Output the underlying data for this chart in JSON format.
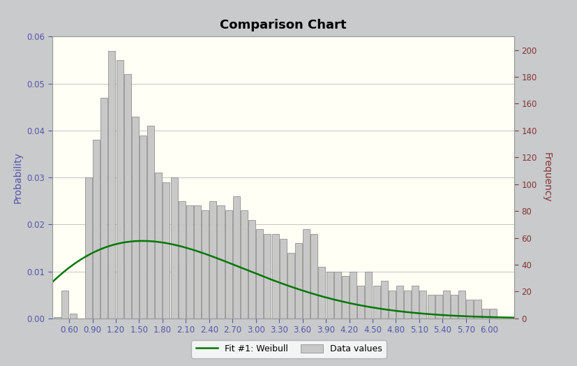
{
  "title": "Comparison Chart",
  "ylabel_left": "Probability",
  "ylabel_right": "Frequency",
  "plot_bg": "#FFFFF5",
  "fig_bg": "#C8CACC",
  "bar_color": "#C8C8C8",
  "bar_edge_color": "#808080",
  "weibull_color": "#007700",
  "left_label_color": "#5555AA",
  "left_tick_color": "#5555AA",
  "right_label_color": "#883333",
  "right_tick_color": "#883333",
  "title_color": "#000000",
  "xtick_color": "#5555AA",
  "grid_color": "#BBBBBB",
  "ylim_left": [
    0.0,
    0.06
  ],
  "ylim_right": [
    0,
    210
  ],
  "xlim": [
    0.38,
    6.32
  ],
  "x_ticks": [
    0.6,
    0.9,
    1.2,
    1.5,
    1.8,
    2.1,
    2.4,
    2.7,
    3.0,
    3.3,
    3.6,
    3.9,
    4.2,
    4.5,
    4.8,
    5.1,
    5.4,
    5.7,
    6.0
  ],
  "left_yticks": [
    0.0,
    0.01,
    0.02,
    0.03,
    0.04,
    0.05,
    0.06
  ],
  "right_yticks": [
    0,
    20,
    40,
    60,
    80,
    100,
    120,
    140,
    160,
    180,
    200
  ],
  "bar_width": 0.09,
  "bar_centers": [
    0.45,
    0.55,
    0.65,
    0.75,
    0.85,
    0.95,
    1.05,
    1.15,
    1.25,
    1.35,
    1.45,
    1.55,
    1.65,
    1.75,
    1.85,
    1.95,
    2.05,
    2.15,
    2.25,
    2.35,
    2.45,
    2.55,
    2.65,
    2.75,
    2.85,
    2.95,
    3.05,
    3.15,
    3.25,
    3.35,
    3.45,
    3.55,
    3.65,
    3.75,
    3.85,
    3.95,
    4.05,
    4.15,
    4.25,
    4.35,
    4.45,
    4.55,
    4.65,
    4.75,
    4.85,
    4.95,
    5.05,
    5.15,
    5.25,
    5.35,
    5.45,
    5.55,
    5.65,
    5.75,
    5.85,
    5.95,
    6.05
  ],
  "bar_probs": [
    0.0003,
    0.006,
    0.001,
    0.0,
    0.03,
    0.038,
    0.047,
    0.057,
    0.055,
    0.052,
    0.043,
    0.039,
    0.041,
    0.031,
    0.029,
    0.03,
    0.025,
    0.024,
    0.024,
    0.023,
    0.025,
    0.024,
    0.023,
    0.026,
    0.023,
    0.021,
    0.019,
    0.018,
    0.018,
    0.017,
    0.014,
    0.016,
    0.019,
    0.018,
    0.011,
    0.01,
    0.01,
    0.009,
    0.01,
    0.007,
    0.01,
    0.007,
    0.008,
    0.006,
    0.007,
    0.006,
    0.007,
    0.006,
    0.005,
    0.005,
    0.006,
    0.005,
    0.006,
    0.004,
    0.004,
    0.002,
    0.002
  ],
  "weibull_k": 1.85,
  "weibull_lambda": 2.35,
  "weibull_peak_prob": 0.0165,
  "legend_line_label": "Fit #1: Weibull",
  "legend_bar_label": "Data values",
  "title_fontsize": 13,
  "axis_label_fontsize": 10,
  "tick_fontsize": 8.5,
  "spine_color": "#999999"
}
